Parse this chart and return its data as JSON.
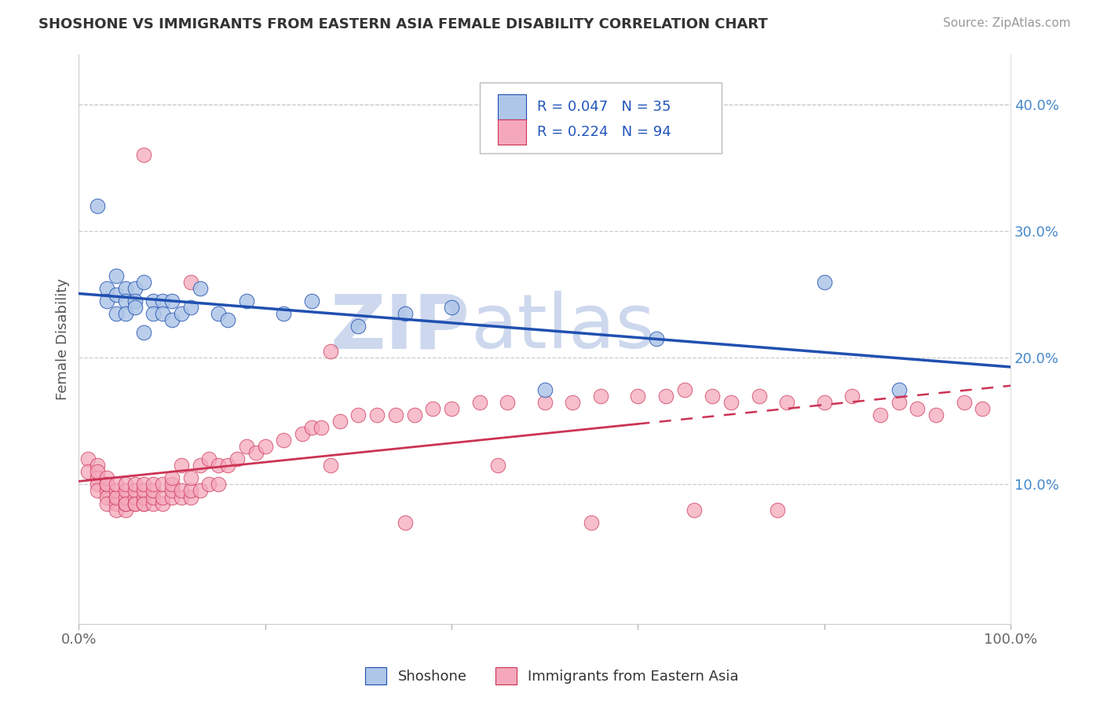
{
  "title": "SHOSHONE VS IMMIGRANTS FROM EASTERN ASIA FEMALE DISABILITY CORRELATION CHART",
  "source": "Source: ZipAtlas.com",
  "ylabel": "Female Disability",
  "right_yticks": [
    "10.0%",
    "20.0%",
    "30.0%",
    "40.0%"
  ],
  "right_ytick_vals": [
    0.1,
    0.2,
    0.3,
    0.4
  ],
  "xlim": [
    0.0,
    1.0
  ],
  "ylim": [
    -0.01,
    0.44
  ],
  "legend_r1": "R = 0.047",
  "legend_n1": "N = 35",
  "legend_r2": "R = 0.224",
  "legend_n2": "N = 94",
  "color_blue": "#aec6e8",
  "color_pink": "#f5a8bc",
  "line_color_blue": "#2050b0",
  "line_color_pink": "#cc3355",
  "watermark_zip": "ZIP",
  "watermark_atlas": "atlas",
  "watermark_color": "#cdd8ee",
  "shoshone_x": [
    0.02,
    0.03,
    0.03,
    0.04,
    0.04,
    0.04,
    0.05,
    0.05,
    0.05,
    0.06,
    0.06,
    0.06,
    0.07,
    0.07,
    0.08,
    0.08,
    0.09,
    0.09,
    0.1,
    0.1,
    0.11,
    0.12,
    0.13,
    0.15,
    0.16,
    0.18,
    0.22,
    0.25,
    0.3,
    0.35,
    0.4,
    0.5,
    0.62,
    0.8,
    0.88
  ],
  "shoshone_y": [
    0.32,
    0.255,
    0.245,
    0.265,
    0.25,
    0.235,
    0.255,
    0.245,
    0.235,
    0.255,
    0.245,
    0.24,
    0.26,
    0.22,
    0.245,
    0.235,
    0.245,
    0.235,
    0.245,
    0.23,
    0.235,
    0.24,
    0.255,
    0.235,
    0.23,
    0.245,
    0.235,
    0.245,
    0.225,
    0.235,
    0.24,
    0.175,
    0.215,
    0.26,
    0.175
  ],
  "eastern_asia_x": [
    0.01,
    0.01,
    0.02,
    0.02,
    0.02,
    0.02,
    0.02,
    0.03,
    0.03,
    0.03,
    0.03,
    0.03,
    0.03,
    0.04,
    0.04,
    0.04,
    0.04,
    0.04,
    0.04,
    0.05,
    0.05,
    0.05,
    0.05,
    0.05,
    0.05,
    0.06,
    0.06,
    0.06,
    0.06,
    0.06,
    0.07,
    0.07,
    0.07,
    0.07,
    0.07,
    0.08,
    0.08,
    0.08,
    0.08,
    0.09,
    0.09,
    0.09,
    0.1,
    0.1,
    0.1,
    0.1,
    0.11,
    0.11,
    0.11,
    0.12,
    0.12,
    0.12,
    0.13,
    0.13,
    0.14,
    0.14,
    0.15,
    0.15,
    0.16,
    0.17,
    0.18,
    0.19,
    0.2,
    0.22,
    0.24,
    0.25,
    0.26,
    0.28,
    0.3,
    0.32,
    0.34,
    0.36,
    0.38,
    0.4,
    0.43,
    0.46,
    0.5,
    0.53,
    0.56,
    0.6,
    0.63,
    0.65,
    0.68,
    0.7,
    0.73,
    0.76,
    0.8,
    0.83,
    0.86,
    0.88,
    0.9,
    0.92,
    0.95,
    0.97
  ],
  "eastern_asia_y": [
    0.12,
    0.11,
    0.115,
    0.105,
    0.1,
    0.095,
    0.11,
    0.095,
    0.1,
    0.105,
    0.09,
    0.085,
    0.1,
    0.09,
    0.085,
    0.095,
    0.08,
    0.09,
    0.1,
    0.08,
    0.085,
    0.09,
    0.095,
    0.1,
    0.085,
    0.085,
    0.09,
    0.095,
    0.085,
    0.1,
    0.085,
    0.09,
    0.095,
    0.085,
    0.1,
    0.085,
    0.09,
    0.095,
    0.1,
    0.085,
    0.09,
    0.1,
    0.09,
    0.095,
    0.1,
    0.105,
    0.09,
    0.095,
    0.115,
    0.09,
    0.095,
    0.105,
    0.095,
    0.115,
    0.1,
    0.12,
    0.1,
    0.115,
    0.115,
    0.12,
    0.13,
    0.125,
    0.13,
    0.135,
    0.14,
    0.145,
    0.145,
    0.15,
    0.155,
    0.155,
    0.155,
    0.155,
    0.16,
    0.16,
    0.165,
    0.165,
    0.165,
    0.165,
    0.17,
    0.17,
    0.17,
    0.175,
    0.17,
    0.165,
    0.17,
    0.165,
    0.165,
    0.17,
    0.155,
    0.165,
    0.16,
    0.155,
    0.165,
    0.16
  ],
  "pink_outlier_x": [
    0.07,
    0.12,
    0.27,
    0.27,
    0.35,
    0.45,
    0.55,
    0.66,
    0.75
  ],
  "pink_outlier_y": [
    0.36,
    0.26,
    0.205,
    0.115,
    0.07,
    0.115,
    0.07,
    0.08,
    0.08
  ]
}
